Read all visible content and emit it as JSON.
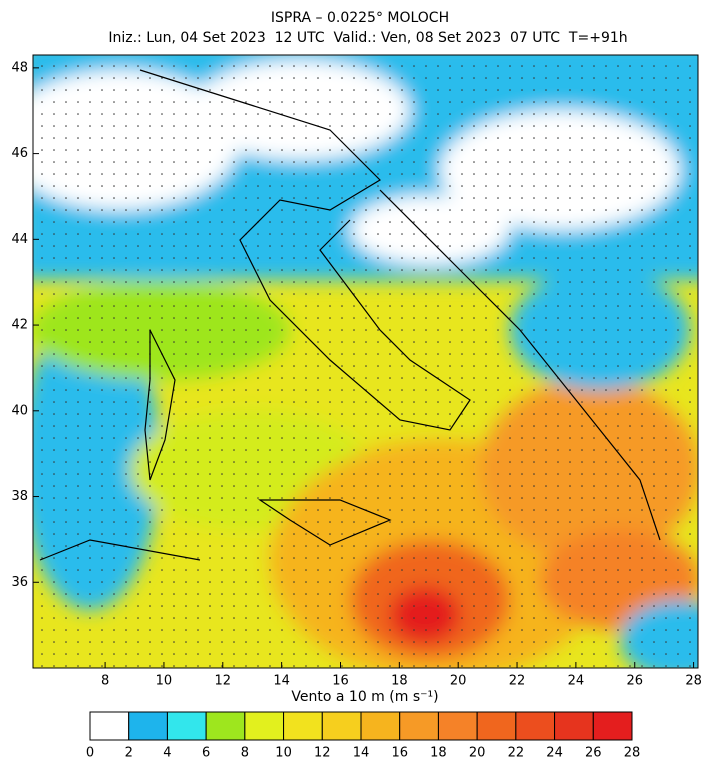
{
  "header": {
    "title": "ISPRA – 0.0225° MOLOCH",
    "subtitle": "Iniz.: Lun, 04 Set 2023  12 UTC  Valid.: Ven, 08 Set 2023  07 UTC  T=+91h"
  },
  "map": {
    "xlim": [
      5.55,
      28.15
    ],
    "ylim": [
      34.0,
      48.3
    ],
    "xticks": [
      8,
      10,
      12,
      14,
      16,
      18,
      20,
      22,
      24,
      26,
      28
    ],
    "yticks": [
      36,
      38,
      40,
      42,
      44,
      46,
      48
    ]
  },
  "colorbar": {
    "label": "Vento a 10 m (m s⁻¹)",
    "ticks": [
      0,
      2,
      4,
      6,
      8,
      10,
      12,
      14,
      16,
      18,
      20,
      22,
      24,
      26,
      28
    ],
    "colors": [
      "#ffffff",
      "#1eb4ec",
      "#32e6ec",
      "#9ee61e",
      "#e2f01e",
      "#f2e21e",
      "#f6cf1e",
      "#f6b41e",
      "#f69a26",
      "#f58228",
      "#f0661e",
      "#ec4e1e",
      "#e6341e",
      "#e41e1e"
    ]
  }
}
